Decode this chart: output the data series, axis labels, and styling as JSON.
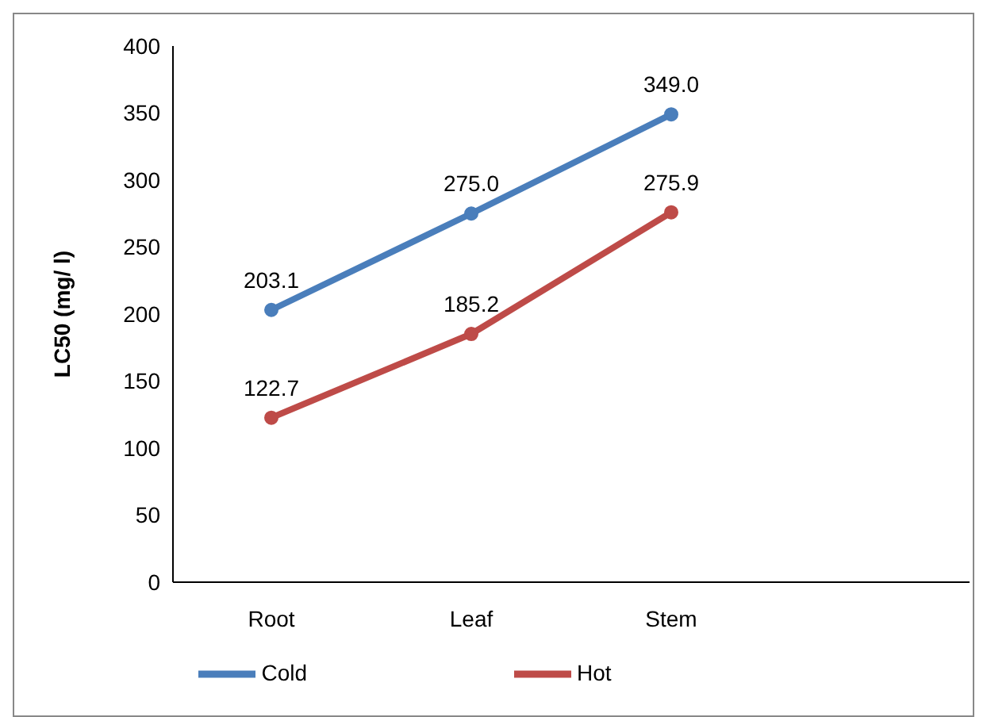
{
  "chart_data": {
    "type": "line",
    "ylabel": "LC50 (mg/ l)",
    "categories": [
      "Root",
      "Leaf",
      "Stem",
      null
    ],
    "series": [
      {
        "name": "Cold",
        "color": "#4a7ebb",
        "values": [
          203.1,
          275.0,
          349.0,
          null
        ],
        "value_labels": [
          "203.1",
          "275.0",
          "349.0",
          null
        ]
      },
      {
        "name": "Hot",
        "color": "#be4b48",
        "values": [
          122.7,
          185.2,
          275.9,
          null
        ],
        "value_labels": [
          "122.7",
          "185.2",
          "275.9",
          null
        ]
      }
    ],
    "ylim": [
      0,
      400
    ],
    "yticks": [
      0,
      50,
      100,
      150,
      200,
      250,
      300,
      350,
      400
    ],
    "grid": false,
    "legend": "bottom",
    "marker": "circle",
    "line_style": "solid"
  }
}
